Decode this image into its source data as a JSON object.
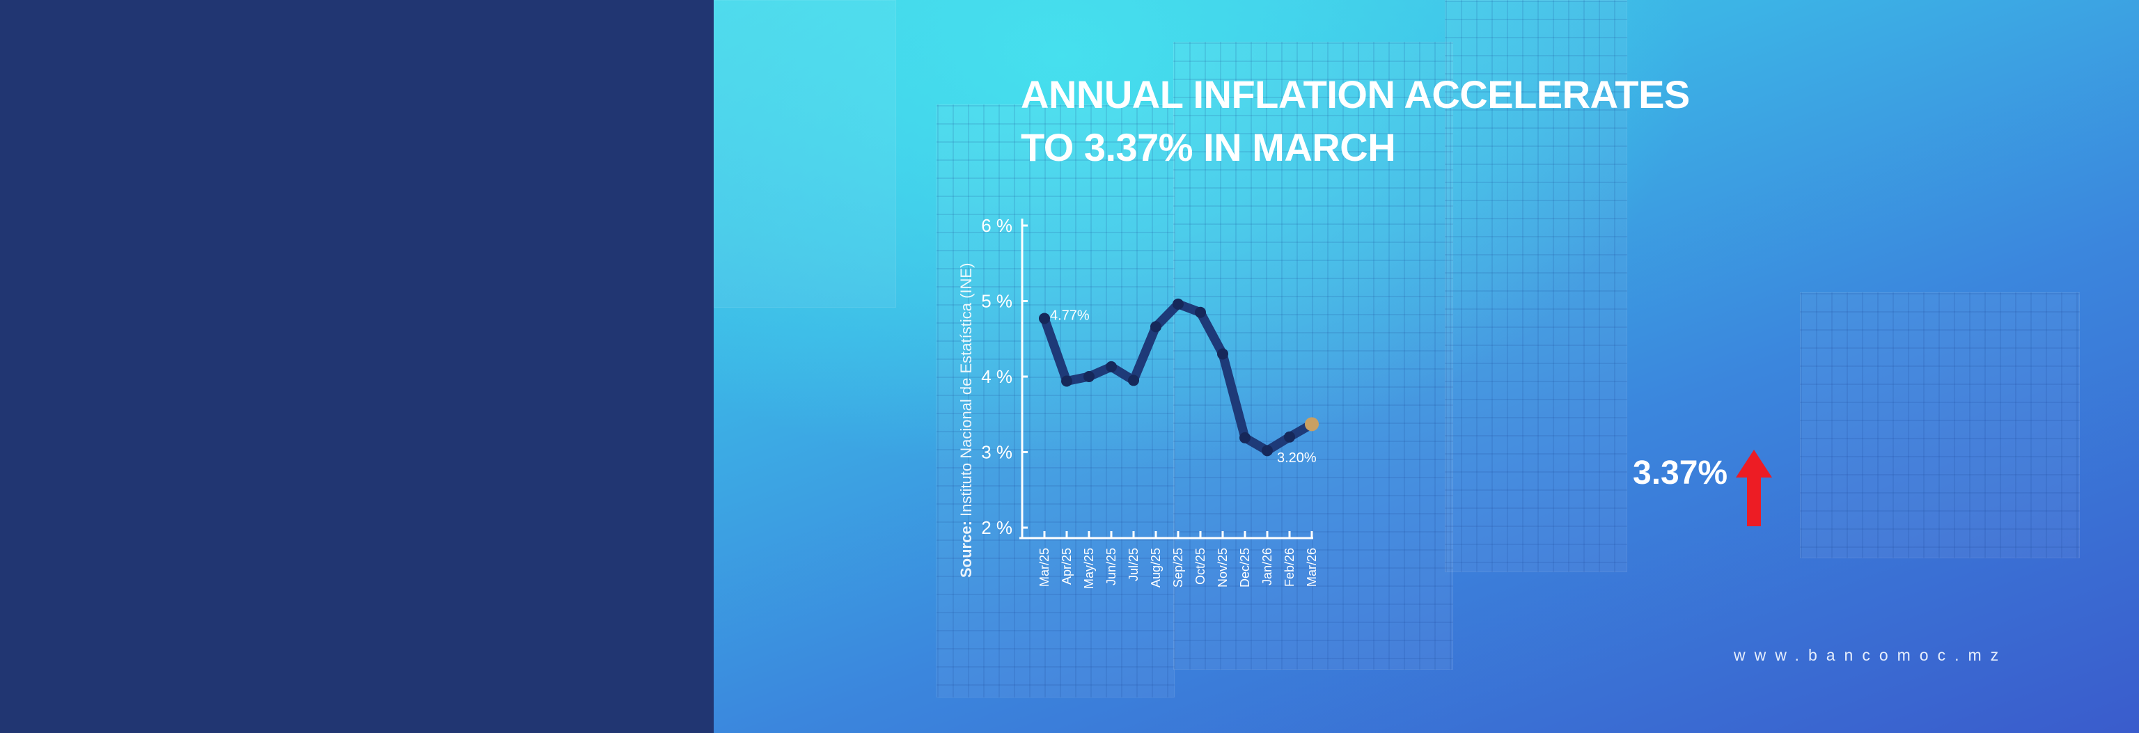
{
  "title": {
    "line1": "ANNUAL INFLATION ACCELERATES",
    "line2": "TO 3.37% IN MARCH"
  },
  "source": {
    "label": "Source:",
    "text": "Instituto Nacional de Estatística (INE)"
  },
  "highlight": {
    "value": "3.37%",
    "trend_icon": "red-up-arrow"
  },
  "website": "www.bancomoc.mz",
  "colors": {
    "left_panel": "#213672",
    "line": "#1e3a78",
    "point": "#16285a",
    "last_point": "#c9a063",
    "arrow": "#ed1c24"
  },
  "chart_data": {
    "type": "line",
    "title": "",
    "xlabel": "",
    "ylabel": "",
    "categories": [
      "Mar/25",
      "Apr/25",
      "May/25",
      "Jun/25",
      "Jul/25",
      "Aug/25",
      "Sep/25",
      "Oct/25",
      "Nov/25",
      "Dec/25",
      "Jan/26",
      "Feb/26",
      "Mar/26"
    ],
    "values": [
      4.77,
      3.94,
      4.0,
      4.13,
      3.95,
      4.66,
      4.96,
      4.85,
      4.3,
      3.19,
      3.02,
      3.2,
      3.37
    ],
    "yticks": [
      "2 %",
      "3 %",
      "4 %",
      "5 %",
      "6 %"
    ],
    "ylim": [
      2,
      6
    ],
    "grid": false,
    "data_labels": [
      {
        "index": 0,
        "text": "4.77%"
      },
      {
        "index": 11,
        "text": "3.20%"
      }
    ]
  }
}
